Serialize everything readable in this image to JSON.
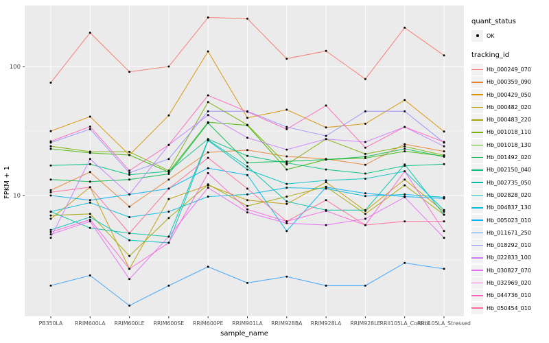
{
  "figure": {
    "panel_bg": "#EBEBEB",
    "grid_color": "#FFFFFF",
    "tick_label_color": "#4D4D4D",
    "tick_mark_color": "#333333",
    "point_color": "#000000",
    "legend_key_bg": "#F2F2F2"
  },
  "axes": {
    "x_title": "sample_name",
    "y_title": "FPKM + 1",
    "y_ticks": [
      {
        "label": "100",
        "value": 100
      },
      {
        "label": "10",
        "value": 10
      }
    ]
  },
  "legend": {
    "quant_title": "quant_status",
    "quant_items": [
      {
        "label": "OK",
        "symbol": "point"
      }
    ],
    "tracking_title": "tracking_id"
  },
  "chart_data": {
    "type": "line",
    "title": "",
    "xlabel": "sample_name",
    "ylabel": "FPKM + 1",
    "y_scale": "log10",
    "ylim": [
      1,
      316
    ],
    "grid": true,
    "legend_position": "right",
    "x": [
      "PB350LA",
      "RRIM600LA",
      "RRIM600LE",
      "RRIM600SE",
      "RRIM600PE",
      "RRIM901LA",
      "RRIM928BA",
      "RRIM928LA",
      "RRIM928LE",
      "RRII105LA_Control",
      "RRII105LA_Stressed"
    ],
    "series": [
      {
        "name": "Hb_000249_070",
        "color": "#F8766D",
        "quant_status": "OK",
        "values": [
          75,
          183,
          91,
          100,
          240,
          235,
          115,
          132,
          80,
          200,
          122
        ]
      },
      {
        "name": "Hb_000359_090",
        "color": "#EA8331",
        "quant_status": "OK",
        "values": [
          11.0,
          15.2,
          8.2,
          13.3,
          21.6,
          22.5,
          20.1,
          19.2,
          17.3,
          25.0,
          22.0
        ]
      },
      {
        "name": "Hb_000429_050",
        "color": "#D89000",
        "quant_status": "OK",
        "values": [
          31.6,
          40.9,
          20.6,
          41.8,
          131,
          40.0,
          46.3,
          33.7,
          36.0,
          55.0,
          31.3
        ]
      },
      {
        "name": "Hb_000482_020",
        "color": "#C09B00",
        "quant_status": "OK",
        "values": [
          6.6,
          11.6,
          2.7,
          9.4,
          12.0,
          9.2,
          8.6,
          12.7,
          7.6,
          13.3,
          7.5
        ]
      },
      {
        "name": "Hb_000483_220",
        "color": "#A3A500",
        "quant_status": "OK",
        "values": [
          7.0,
          7.2,
          3.4,
          6.7,
          12.2,
          8.3,
          9.8,
          11.7,
          7.2,
          12.0,
          7.1
        ]
      },
      {
        "name": "Hb_001018_110",
        "color": "#7CAE00",
        "quant_status": "OK",
        "values": [
          24.1,
          21.9,
          21.8,
          15.6,
          53.0,
          35.3,
          17.4,
          27.4,
          21.0,
          24.0,
          20.5
        ]
      },
      {
        "name": "Hb_001018_130",
        "color": "#39B600",
        "quant_status": "OK",
        "values": [
          23.0,
          21.4,
          20.6,
          15.2,
          37.0,
          35.0,
          15.9,
          19.0,
          19.5,
          22.0,
          20.2
        ]
      },
      {
        "name": "Hb_001492_020",
        "color": "#00BB4E",
        "quant_status": "OK",
        "values": [
          13.3,
          12.8,
          13.3,
          14.7,
          36.5,
          18.0,
          18.4,
          19.0,
          20.0,
          23.0,
          20.0
        ]
      },
      {
        "name": "Hb_002150_040",
        "color": "#00BF7D",
        "quant_status": "OK",
        "values": [
          17.1,
          17.5,
          14.5,
          15.4,
          27.4,
          20.3,
          17.9,
          15.9,
          14.8,
          17.0,
          17.5
        ]
      },
      {
        "name": "Hb_002735_050",
        "color": "#00C1A3",
        "quant_status": "OK",
        "values": [
          7.5,
          5.6,
          5.1,
          4.8,
          27.0,
          16.8,
          9.0,
          7.7,
          7.7,
          17.4,
          7.1
        ]
      },
      {
        "name": "Hb_002828_020",
        "color": "#00BFC4",
        "quant_status": "OK",
        "values": [
          5.4,
          6.8,
          4.5,
          4.3,
          26.7,
          15.9,
          12.3,
          13.1,
          13.5,
          15.4,
          7.7
        ]
      },
      {
        "name": "Hb_004837_130",
        "color": "#00BAE0",
        "quant_status": "OK",
        "values": [
          7.5,
          8.8,
          6.8,
          7.5,
          9.8,
          10.2,
          11.5,
          11.3,
          9.9,
          10.2,
          9.7
        ]
      },
      {
        "name": "Hb_005023_010",
        "color": "#00B0F6",
        "quant_status": "OK",
        "values": [
          10.0,
          9.2,
          10.2,
          11.3,
          16.3,
          14.4,
          5.3,
          11.6,
          10.4,
          9.8,
          9.5
        ]
      },
      {
        "name": "Hb_011671_250",
        "color": "#35A2FF",
        "quant_status": "OK",
        "values": [
          2.0,
          2.4,
          1.4,
          2.0,
          2.8,
          2.1,
          2.35,
          2.0,
          2.0,
          3.0,
          2.7
        ]
      },
      {
        "name": "Hb_018292_010",
        "color": "#9590FF",
        "quant_status": "OK",
        "values": [
          25.7,
          32.7,
          15.0,
          19.2,
          45.0,
          45.0,
          34.0,
          29.0,
          45.0,
          45.0,
          25.7
        ]
      },
      {
        "name": "Hb_022833_100",
        "color": "#C77CFF",
        "quant_status": "OK",
        "values": [
          4.7,
          19.2,
          10.2,
          24.7,
          42.0,
          28.0,
          22.7,
          27.4,
          26.0,
          34.0,
          24.1
        ]
      },
      {
        "name": "Hb_030827_070",
        "color": "#E76BF3",
        "quant_status": "OK",
        "values": [
          5.0,
          6.3,
          2.25,
          4.8,
          11.5,
          7.4,
          6.1,
          5.9,
          6.6,
          9.7,
          4.7
        ]
      },
      {
        "name": "Hb_032969_020",
        "color": "#FA62DB",
        "quant_status": "OK",
        "values": [
          5.2,
          6.5,
          2.7,
          4.3,
          14.9,
          7.8,
          6.3,
          7.6,
          5.9,
          15.4,
          5.3
        ]
      },
      {
        "name": "Hb_044736_010",
        "color": "#FF62BC",
        "quant_status": "OK",
        "values": [
          26.3,
          34.2,
          15.6,
          24.7,
          59.8,
          44.6,
          32.7,
          49.8,
          23.5,
          34.0,
          26.0
        ]
      },
      {
        "name": "Hb_050454_010",
        "color": "#FF6A98",
        "quant_status": "OK",
        "values": [
          10.6,
          11.6,
          5.1,
          11.3,
          19.6,
          11.3,
          6.3,
          9.2,
          5.9,
          6.3,
          6.3
        ]
      }
    ]
  }
}
